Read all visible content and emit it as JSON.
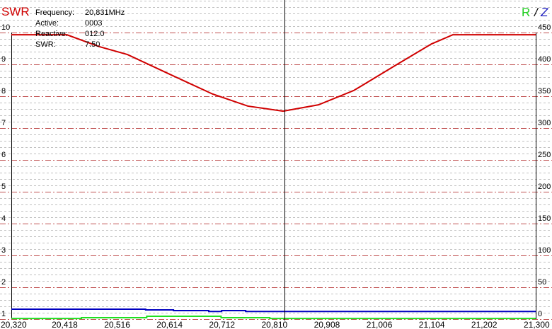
{
  "chart_data": {
    "type": "line",
    "left_axis_title": "SWR",
    "right_axis_title": {
      "r": "R",
      "sep": "/",
      "z": "Z"
    },
    "xlim": [
      20.32,
      21.3
    ],
    "ylim_left": [
      1,
      10
    ],
    "ylim_right": [
      0,
      450
    ],
    "x_ticks": [
      "20,320",
      "20,418",
      "20,516",
      "20,614",
      "20,712",
      "20,810",
      "20,908",
      "21,006",
      "21,104",
      "21,202",
      "21,300"
    ],
    "y_left_ticks": [
      "1",
      "2",
      "3",
      "4",
      "5",
      "6",
      "7",
      "8",
      "9",
      "10"
    ],
    "y_right_ticks": [
      "0",
      "50",
      "100",
      "150",
      "200",
      "250",
      "300",
      "350",
      "400",
      "450"
    ],
    "grid": true,
    "cursor_x": 20.831,
    "readout": [
      {
        "label": "Frequency:",
        "value": "20,831MHz"
      },
      {
        "label": "Active:",
        "value": "0003"
      },
      {
        "label": "Reactive:",
        "value": "012.0"
      },
      {
        "label": "SWR:",
        "value": "7.50"
      }
    ],
    "series": [
      {
        "axis": "left",
        "color": "#d00000",
        "x": [
          20.32,
          20.424,
          20.484,
          20.537,
          20.616,
          20.696,
          20.762,
          20.828,
          20.894,
          20.96,
          21.039,
          21.105,
          21.145,
          21.3
        ],
        "y": [
          9.93,
          9.93,
          9.56,
          9.31,
          8.69,
          8.07,
          7.69,
          7.53,
          7.73,
          8.18,
          8.98,
          9.64,
          9.93,
          9.93
        ]
      },
      {
        "axis": "right",
        "color": "#0000c0",
        "step": true,
        "x": [
          20.32,
          20.571,
          20.623,
          20.689,
          20.713,
          20.758,
          20.805,
          21.3
        ],
        "y": [
          15.6,
          14.5,
          13.3,
          12,
          13.3,
          12,
          12,
          12
        ]
      },
      {
        "axis": "right",
        "color": "#20e020",
        "step": true,
        "x": [
          20.32,
          20.451,
          20.573,
          20.712,
          20.803,
          21.3
        ],
        "y": [
          1,
          2.2,
          4.4,
          2.2,
          1,
          1
        ]
      }
    ],
    "colors": {
      "major_grid": "#c05050",
      "minor_grid": "#c0c0c0",
      "cursor": "#000000"
    }
  }
}
